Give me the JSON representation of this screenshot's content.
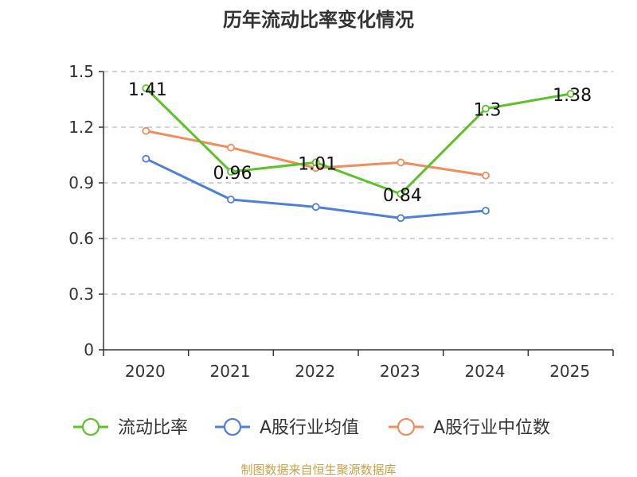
{
  "colors": {
    "current_ratio": "#5bc229",
    "industry_mean": "#4f7fdb",
    "industry_median": "#f28c5a",
    "grid": "#bbbbbb",
    "axis": "#333333",
    "source": "#c9a046"
  },
  "chart_data": {
    "type": "line",
    "title": "历年流动比率变化情况",
    "categories": [
      "2020",
      "2021",
      "2022",
      "2023",
      "2024",
      "2025"
    ],
    "ylim": [
      0,
      1.5
    ],
    "yticks": [
      "0",
      "0.3",
      "0.6",
      "0.9",
      "1.2",
      "1.5"
    ],
    "grid": true,
    "legend_position": "bottom",
    "series": [
      {
        "name": "流动比率",
        "color_key": "current_ratio",
        "values": [
          1.41,
          0.96,
          1.01,
          0.84,
          1.3,
          1.38
        ],
        "labels": [
          "1.41",
          "0.96",
          "1.01",
          "0.84",
          "1.3",
          "1.38"
        ]
      },
      {
        "name": "A股行业均值",
        "color_key": "industry_mean",
        "values": [
          1.03,
          0.81,
          0.77,
          0.71,
          0.75,
          null
        ]
      },
      {
        "name": "A股行业中位数",
        "color_key": "industry_median",
        "values": [
          1.18,
          1.09,
          0.98,
          1.01,
          0.94,
          null
        ]
      }
    ]
  },
  "footer": {
    "source_text": "制图数据来自恒生聚源数据库"
  }
}
